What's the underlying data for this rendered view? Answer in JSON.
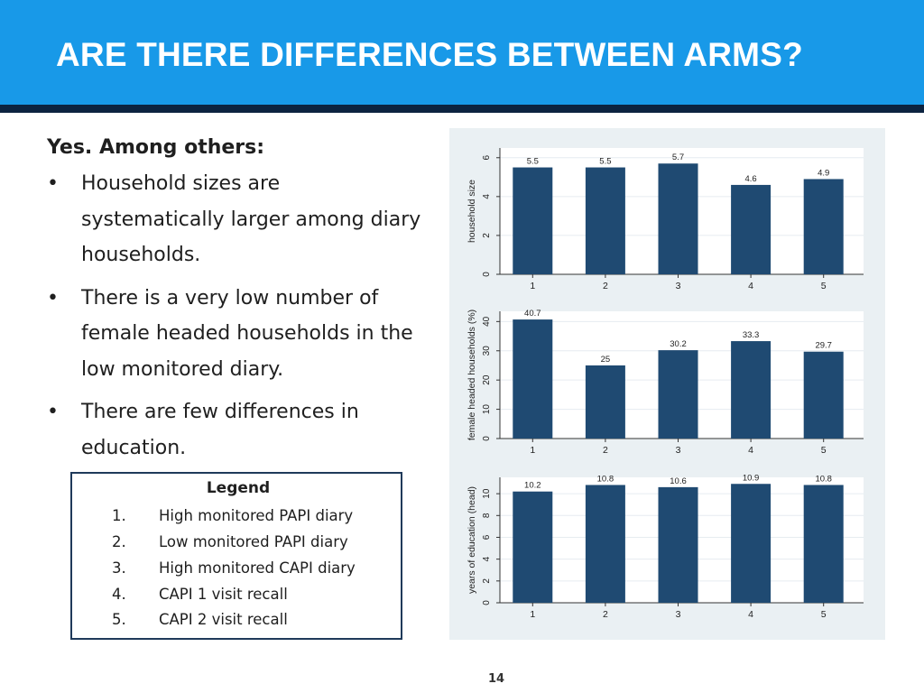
{
  "slide": {
    "title": "ARE THERE DIFFERENCES BETWEEN ARMS?",
    "intro": "Yes.  Among others:",
    "bullets": [
      "Household sizes are systematically larger among diary households.",
      "There is a very low number of female headed households in the low monitored diary.",
      "There are few differences in education."
    ],
    "bullet_symbol": "•",
    "page_number": "14"
  },
  "legend": {
    "title": "Legend",
    "items": [
      {
        "num": "1.",
        "label": "High monitored PAPI diary"
      },
      {
        "num": "2.",
        "label": "Low monitored PAPI diary"
      },
      {
        "num": "3.",
        "label": "High monitored CAPI diary"
      },
      {
        "num": "4.",
        "label": "CAPI 1 visit recall"
      },
      {
        "num": "5.",
        "label": "CAPI 2 visit recall"
      }
    ]
  },
  "colors": {
    "header": "#1899e8",
    "header_rule": "#0c2340",
    "bar": "#1f4a72",
    "plot_bg": "#ffffff",
    "figure_bg": "#eaf0f3"
  },
  "chart_data": [
    {
      "type": "bar",
      "categories": [
        "1",
        "2",
        "3",
        "4",
        "5"
      ],
      "values": [
        5.5,
        5.5,
        5.7,
        4.6,
        4.9
      ],
      "data_labels": [
        "5.5",
        "5.5",
        "5.7",
        "4.6",
        "4.9"
      ],
      "ylabel": "household size",
      "yticks": [
        0,
        2,
        4,
        6
      ],
      "ytick_labels": [
        "0",
        "2",
        "4",
        "6"
      ],
      "ylim": [
        0,
        6.5
      ],
      "grid": true,
      "legend": "none"
    },
    {
      "type": "bar",
      "categories": [
        "1",
        "2",
        "3",
        "4",
        "5"
      ],
      "values": [
        40.7,
        25,
        30.2,
        33.3,
        29.7
      ],
      "data_labels": [
        "40.7",
        "25",
        "30.2",
        "33.3",
        "29.7"
      ],
      "ylabel": "female headed households (%)",
      "yticks": [
        0,
        10,
        20,
        30,
        40
      ],
      "ytick_labels": [
        "0",
        "10",
        "20",
        "30",
        "40"
      ],
      "ylim": [
        0,
        43.5
      ],
      "grid": true,
      "legend": "none"
    },
    {
      "type": "bar",
      "categories": [
        "1",
        "2",
        "3",
        "4",
        "5"
      ],
      "values": [
        10.2,
        10.8,
        10.6,
        10.9,
        10.8
      ],
      "data_labels": [
        "10.2",
        "10.8",
        "10.6",
        "10.9",
        "10.8"
      ],
      "ylabel": "years of education (head)",
      "yticks": [
        0,
        2,
        4,
        6,
        8,
        10
      ],
      "ytick_labels": [
        "0",
        "2",
        "4",
        "6",
        "8",
        "10"
      ],
      "ylim": [
        0,
        11.5
      ],
      "grid": true,
      "legend": "none"
    }
  ]
}
